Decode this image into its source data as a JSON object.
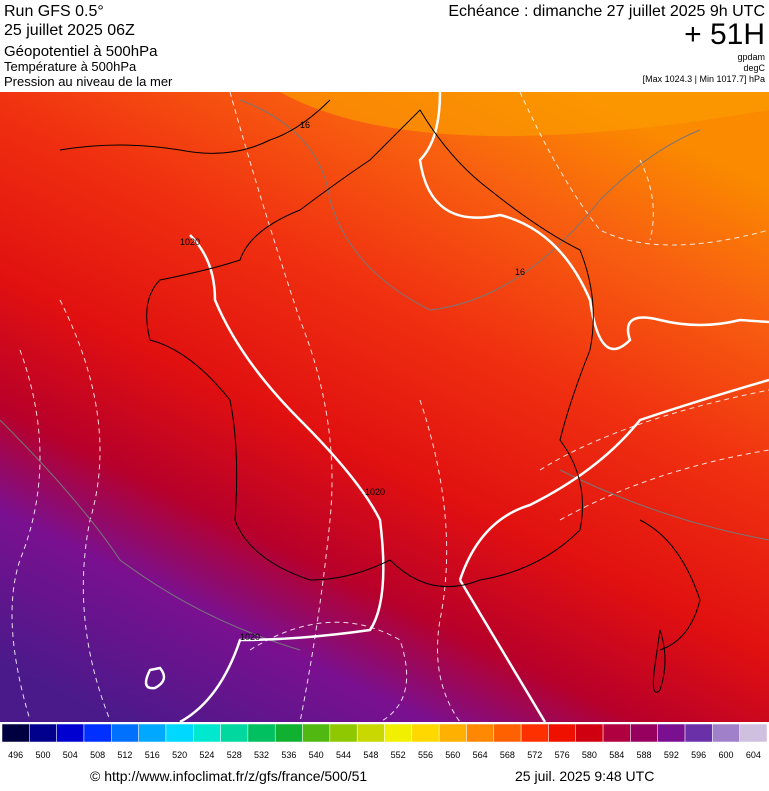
{
  "header": {
    "run": "Run GFS 0.5°",
    "run_date": "25 juillet 2025 06Z",
    "field1": "Géopotentiel à 500hPa",
    "field2": "Température à 500hPa",
    "field3": "Pression au niveau de la mer",
    "valid": "Echéance : dimanche 27 juillet 2025 9h UTC",
    "lead": "+ 51H",
    "unit1": "gpdam",
    "unit2": "degC",
    "pressure_range": "[Max 1024.3 | Min 1017.7] hPa"
  },
  "map": {
    "contour_labels": [
      "16",
      "16",
      "1020",
      "1020",
      "1020"
    ]
  },
  "colorbar": {
    "labels": [
      496,
      500,
      504,
      508,
      512,
      516,
      520,
      524,
      528,
      532,
      536,
      540,
      544,
      548,
      552,
      556,
      560,
      564,
      568,
      572,
      576,
      580,
      584,
      588,
      592,
      596,
      600,
      604
    ]
  },
  "footer": {
    "source": "© http://www.infoclimat.fr/z/gfs/france/500/51",
    "timestamp": "25 juil. 2025  9:48 UTC"
  }
}
